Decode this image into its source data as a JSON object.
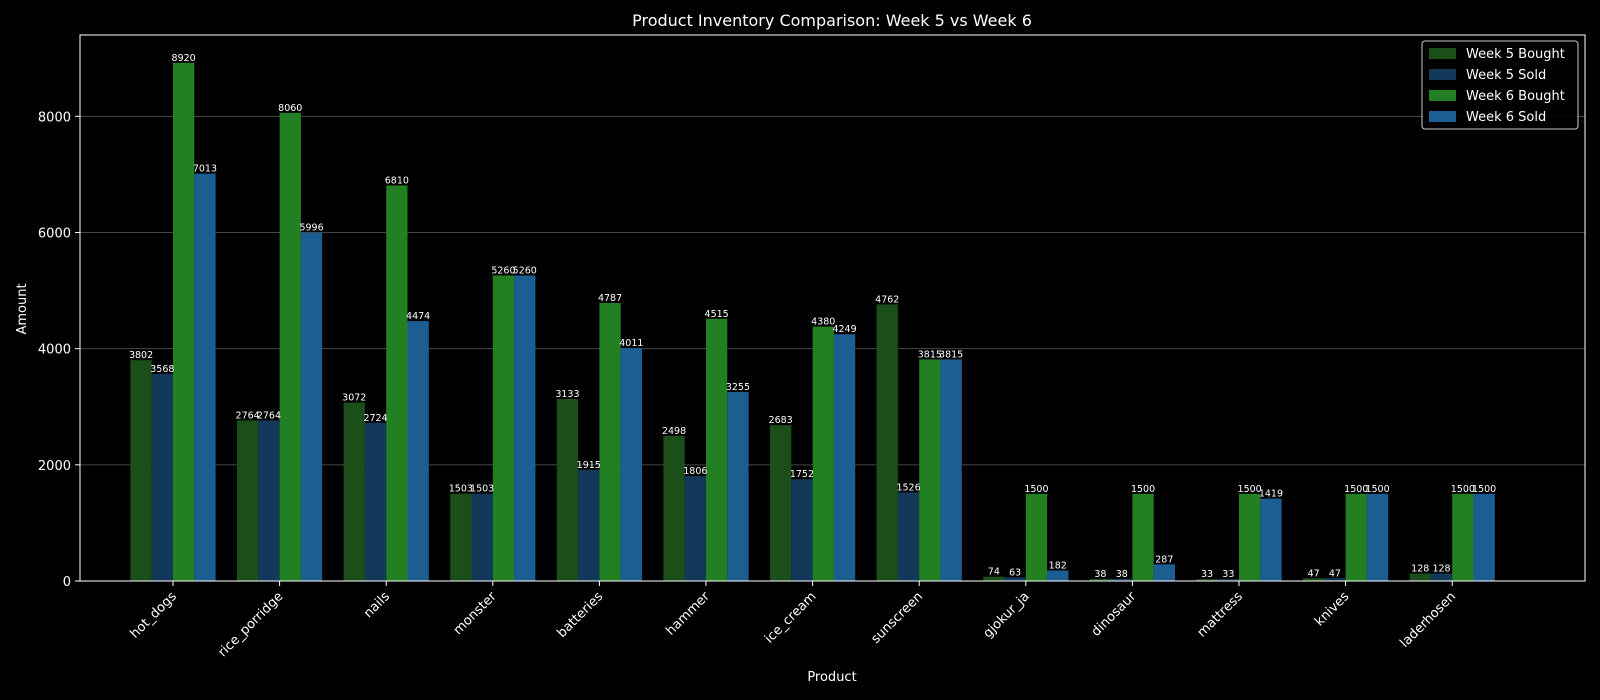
{
  "chart_data": {
    "type": "bar",
    "title": "Product Inventory Comparison: Week 5 vs Week 6",
    "xlabel": "Product",
    "ylabel": "Amount",
    "ylim": [
      0,
      9400
    ],
    "yticks": [
      0,
      2000,
      4000,
      6000,
      8000
    ],
    "grid": true,
    "legend_position": "top-right",
    "categories": [
      "hot_dogs",
      "rice_porridge",
      "nails",
      "monster",
      "batteries",
      "hammer",
      "ice_cream",
      "sunscreen",
      "gjokur_ja",
      "dinosaur",
      "mattress",
      "knives",
      "laderhosen"
    ],
    "series": [
      {
        "name": "Week 5 Bought",
        "color": "#1a4f1a",
        "values": [
          3802,
          2764,
          3072,
          1503,
          3133,
          2498,
          2683,
          4762,
          74,
          38,
          33,
          47,
          128
        ]
      },
      {
        "name": "Week 5 Sold",
        "color": "#12385a",
        "values": [
          3568,
          2764,
          2724,
          1503,
          1915,
          1806,
          1752,
          1526,
          63,
          38,
          33,
          47,
          128
        ]
      },
      {
        "name": "Week 6 Bought",
        "color": "#228022",
        "values": [
          8920,
          8060,
          6810,
          5260,
          4787,
          4515,
          4380,
          3815,
          1500,
          1500,
          1500,
          1500,
          1500
        ]
      },
      {
        "name": "Week 6 Sold",
        "color": "#1c5e92",
        "values": [
          7013,
          5996,
          4474,
          5260,
          4011,
          3255,
          4249,
          3815,
          182,
          287,
          1419,
          1500,
          1500
        ]
      }
    ]
  }
}
